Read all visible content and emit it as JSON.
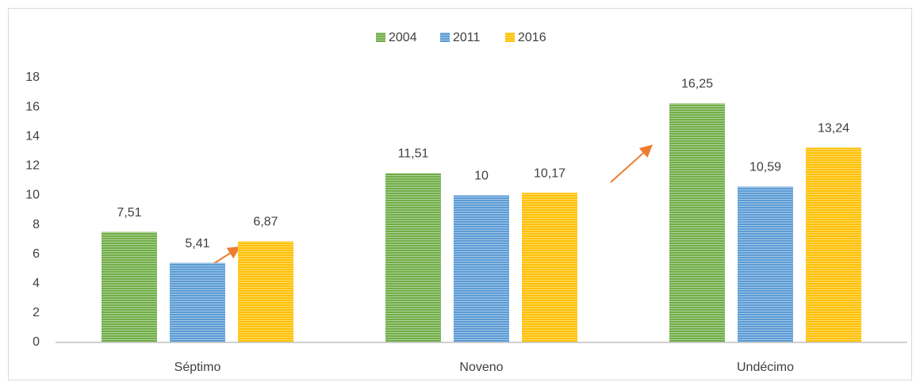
{
  "chart_data": {
    "type": "bar",
    "categories": [
      "Séptimo",
      "Noveno",
      "Undécimo"
    ],
    "series": [
      {
        "name": "2004",
        "color": "#70ad47",
        "values": [
          7.51,
          11.51,
          16.25
        ],
        "value_labels": [
          "7,51",
          "11,51",
          "16,25"
        ]
      },
      {
        "name": "2011",
        "color": "#5b9bd5",
        "values": [
          5.41,
          10,
          10.59
        ],
        "value_labels": [
          "5,41",
          "10",
          "10,59"
        ]
      },
      {
        "name": "2016",
        "color": "#ffc000",
        "values": [
          6.87,
          10.17,
          13.24
        ],
        "value_labels": [
          "6,87",
          "10,17",
          "13,24"
        ]
      }
    ],
    "ylim": [
      0,
      18
    ],
    "yticks": [
      0,
      2,
      4,
      6,
      8,
      10,
      12,
      14,
      16,
      18
    ],
    "grid": false,
    "legend": "top"
  }
}
